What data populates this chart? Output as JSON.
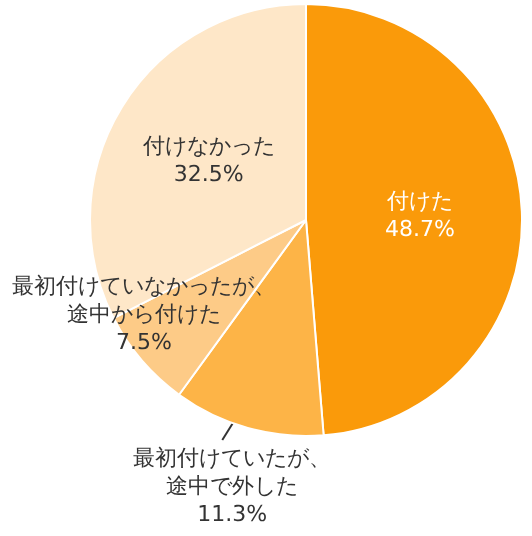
{
  "chart_data": {
    "type": "pie",
    "categories": [
      "付けた",
      "最初付けていたが、途中で外した",
      "最初付けていなかったが、途中から付けた",
      "付けなかった"
    ],
    "values": [
      48.7,
      11.3,
      7.5,
      32.5
    ],
    "value_labels": [
      "48.7%",
      "11.3%",
      "7.5%",
      "32.5%"
    ],
    "colors": [
      "#fa9a0a",
      "#fdb447",
      "#fdcb87",
      "#fee7c8"
    ]
  }
}
